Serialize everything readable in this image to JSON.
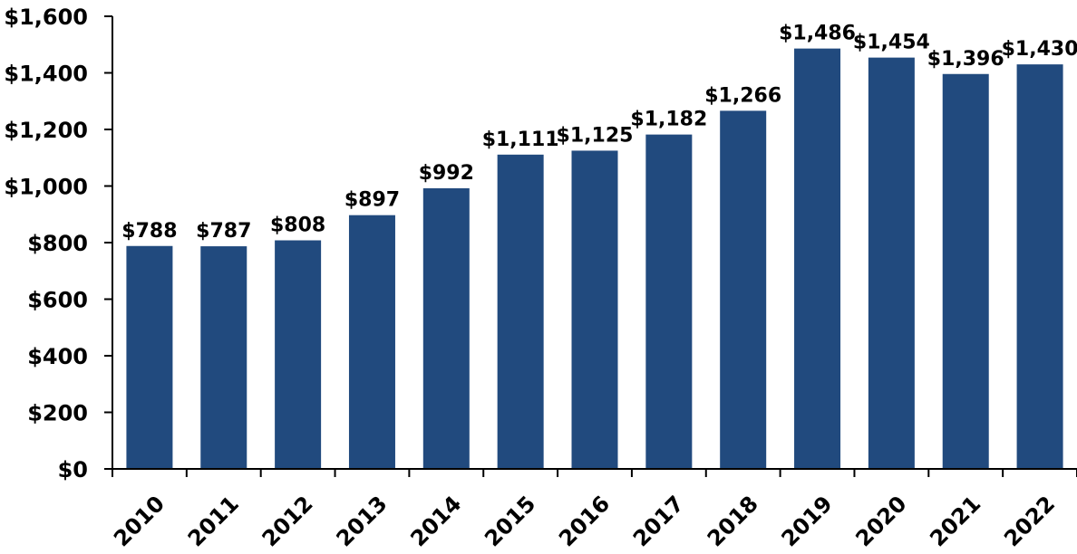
{
  "chart_data": {
    "type": "bar",
    "title": "",
    "xlabel": "",
    "ylabel": "",
    "categories": [
      "2010",
      "2011",
      "2012",
      "2013",
      "2014",
      "2015",
      "2016",
      "2017",
      "2018",
      "2019",
      "2020",
      "2021",
      "2022"
    ],
    "values": [
      788,
      787,
      808,
      897,
      992,
      1111,
      1125,
      1182,
      1266,
      1486,
      1454,
      1396,
      1430
    ],
    "data_labels": [
      "$788",
      "$787",
      "$808",
      "$897",
      "$992",
      "$1,111",
      "$1,125",
      "$1,182",
      "$1,266",
      "$1,486",
      "$1,454",
      "$1,396",
      "$1,430"
    ],
    "ylim": [
      0,
      1600
    ],
    "yticks": [
      0,
      200,
      400,
      600,
      800,
      1000,
      1200,
      1400,
      1600
    ],
    "ytick_labels": [
      "$0",
      "$200",
      "$400",
      "$600",
      "$800",
      "$1,000",
      "$1,200",
      "$1,400",
      "$1,600"
    ],
    "grid": false,
    "legend": "none",
    "bar_color": "#214A7E"
  }
}
